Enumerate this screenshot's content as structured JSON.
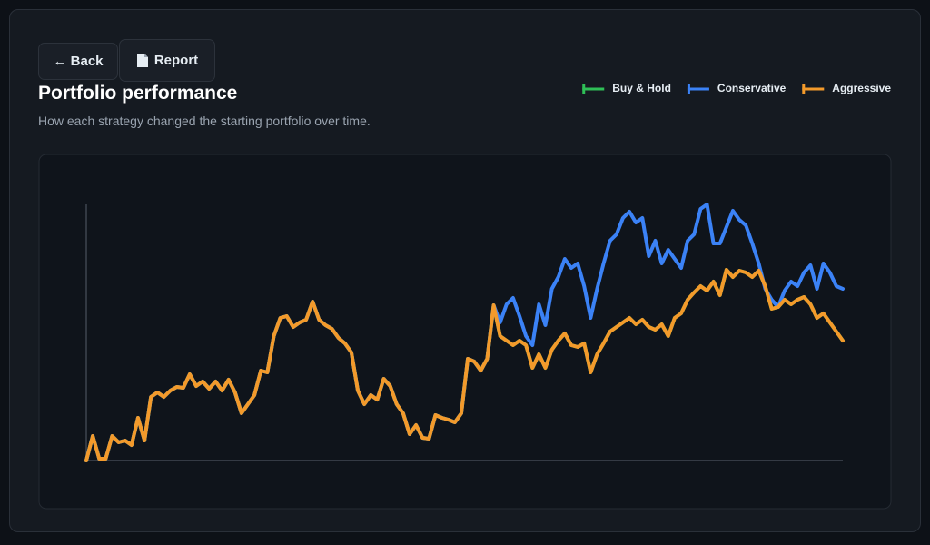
{
  "buttons": {
    "back": "← Back",
    "report": "Report"
  },
  "chart_data": {
    "type": "line",
    "title": "Portfolio performance",
    "subtitle": "How each strategy changed the starting portfolio over time.",
    "legend": "top-right",
    "ylim": [
      0,
      300
    ],
    "series": [
      {
        "name": "Buy & Hold",
        "color": "#2fbf57",
        "values": [
          0,
          27,
          2,
          2,
          27,
          20,
          22,
          17,
          47,
          22,
          70,
          75,
          70,
          77,
          81,
          80,
          95,
          82,
          87,
          79,
          87,
          77,
          89,
          75,
          52,
          62,
          72,
          99,
          97,
          137,
          157,
          159,
          147,
          152,
          155,
          175,
          155,
          149,
          145,
          135,
          129,
          119,
          77,
          62,
          72,
          67,
          90,
          82,
          62,
          52,
          29,
          39,
          25,
          24,
          50,
          47,
          45,
          42,
          52,
          112,
          109,
          99,
          112,
          171,
          137,
          132,
          127,
          132,
          127,
          102,
          117,
          102,
          122,
          132,
          140,
          127,
          125,
          129,
          97,
          117,
          129,
          142,
          147,
          152,
          157,
          150,
          155,
          147,
          144,
          150,
          137,
          157,
          162,
          177,
          185,
          192,
          187,
          197,
          182,
          210,
          202,
          209,
          207,
          202,
          209,
          192,
          167,
          169,
          177,
          172,
          177,
          180,
          172,
          157,
          162,
          152,
          142,
          132
        ]
      },
      {
        "name": "Conservative",
        "color": "#3b82f6",
        "values": [
          0,
          27,
          2,
          2,
          27,
          20,
          22,
          17,
          47,
          22,
          70,
          75,
          70,
          77,
          81,
          80,
          95,
          82,
          87,
          79,
          87,
          77,
          89,
          75,
          52,
          62,
          72,
          99,
          97,
          137,
          157,
          159,
          147,
          152,
          155,
          175,
          155,
          149,
          145,
          135,
          129,
          119,
          77,
          62,
          72,
          67,
          90,
          82,
          62,
          52,
          29,
          39,
          25,
          24,
          50,
          47,
          45,
          42,
          52,
          112,
          109,
          99,
          112,
          171,
          152,
          172,
          179,
          159,
          137,
          127,
          172,
          149,
          189,
          202,
          222,
          212,
          217,
          192,
          157,
          189,
          217,
          242,
          249,
          267,
          274,
          262,
          267,
          225,
          242,
          217,
          232,
          222,
          212,
          242,
          249,
          277,
          282,
          239,
          239,
          257,
          275,
          265,
          259,
          239,
          217,
          189,
          177,
          169,
          187,
          197,
          192,
          207,
          215,
          189,
          217,
          207,
          192,
          189
        ]
      },
      {
        "name": "Aggressive",
        "color": "#f39a2b",
        "values": [
          0,
          27,
          2,
          2,
          27,
          20,
          22,
          17,
          47,
          22,
          70,
          75,
          70,
          77,
          81,
          80,
          95,
          82,
          87,
          79,
          87,
          77,
          89,
          75,
          52,
          62,
          72,
          99,
          97,
          137,
          157,
          159,
          147,
          152,
          155,
          175,
          155,
          149,
          145,
          135,
          129,
          119,
          77,
          62,
          72,
          67,
          90,
          82,
          62,
          52,
          29,
          39,
          25,
          24,
          50,
          47,
          45,
          42,
          52,
          112,
          109,
          99,
          112,
          171,
          137,
          132,
          127,
          132,
          127,
          102,
          117,
          102,
          122,
          132,
          140,
          127,
          125,
          129,
          97,
          117,
          129,
          142,
          147,
          152,
          157,
          150,
          155,
          147,
          144,
          150,
          137,
          157,
          162,
          177,
          185,
          192,
          187,
          197,
          182,
          210,
          202,
          209,
          207,
          202,
          209,
          192,
          167,
          169,
          177,
          172,
          177,
          180,
          172,
          157,
          162,
          152,
          142,
          132
        ]
      }
    ]
  }
}
